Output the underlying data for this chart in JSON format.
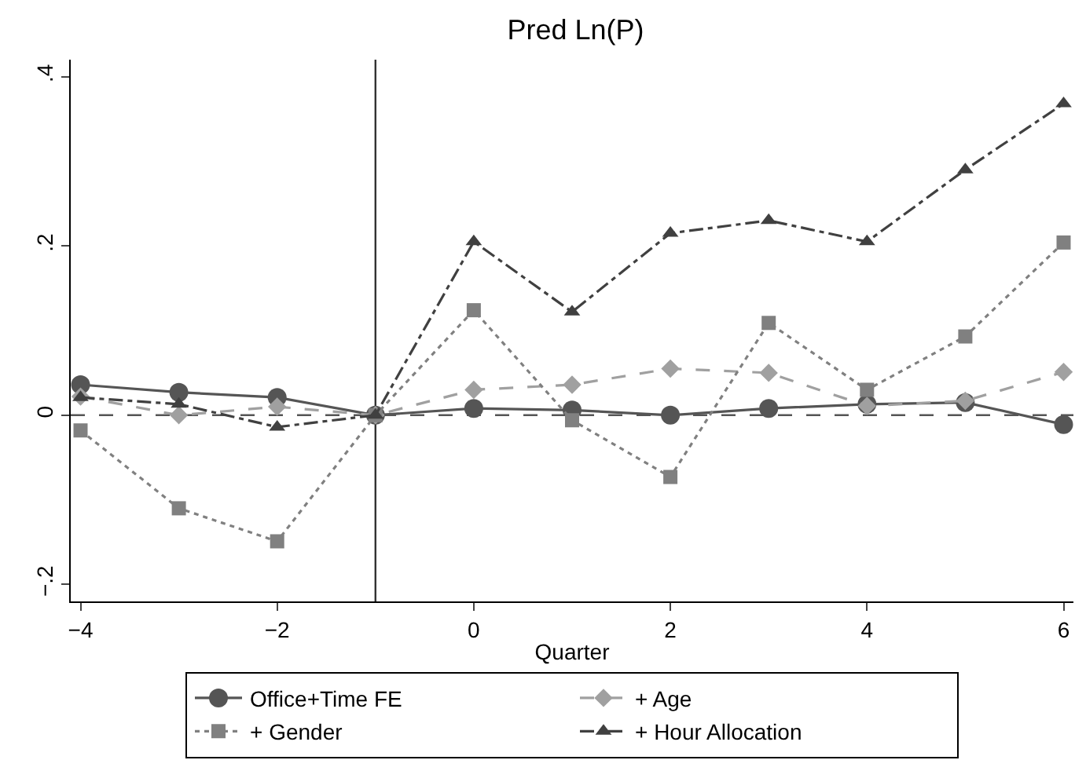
{
  "chart_data": {
    "type": "line",
    "title": "Pred Ln(P)",
    "xlabel": "Quarter",
    "x": [
      -4,
      -3,
      -2,
      -1,
      0,
      1,
      2,
      3,
      4,
      5,
      6
    ],
    "series": [
      {
        "name": "Office+Time FE",
        "color": "#555555",
        "marker": "circle",
        "line_style": "solid",
        "values": [
          0.036,
          0.027,
          0.021,
          0,
          0.008,
          0.006,
          0,
          0.008,
          0.013,
          0.015,
          -0.011
        ]
      },
      {
        "name": "+ Age",
        "color": "#a0a0a0",
        "marker": "diamond",
        "line_style": "dashed",
        "values": [
          0.022,
          0,
          0.01,
          0,
          0.03,
          0.036,
          0.055,
          0.05,
          0.011,
          0.017,
          0.051
        ]
      },
      {
        "name": "+ Gender",
        "color": "#808080",
        "marker": "square",
        "line_style": "dotted",
        "values": [
          -0.018,
          -0.11,
          -0.149,
          0,
          0.124,
          -0.006,
          -0.073,
          0.109,
          0.03,
          0.093,
          0.204
        ]
      },
      {
        "name": "+ Hour Allocation",
        "color": "#404040",
        "marker": "triangle",
        "line_style": "dashdot",
        "values": [
          0.021,
          0.013,
          -0.014,
          0,
          0.205,
          0.122,
          0.215,
          0.23,
          0.205,
          0.29,
          0.368
        ]
      }
    ],
    "xlim": [
      -4.1,
      6.1
    ],
    "xticks": [
      {
        "value": -4,
        "label": "−4"
      },
      {
        "value": -2,
        "label": "−2"
      },
      0,
      2,
      4,
      6
    ],
    "ylim": [
      -0.22,
      0.42
    ],
    "yticks": [
      {
        "value": -0.2,
        "label": "−.2"
      },
      0,
      {
        "value": 0.2,
        "label": ".2"
      },
      {
        "value": 0.4,
        "label": ".4"
      }
    ],
    "ref_lines": [
      {
        "axis": "y",
        "value": 0,
        "color": "#555555",
        "line_style": "dashed"
      },
      {
        "axis": "x",
        "value": -1,
        "color": "#333333",
        "line_style": "solid"
      }
    ],
    "grid": false,
    "legend": "bottom"
  }
}
